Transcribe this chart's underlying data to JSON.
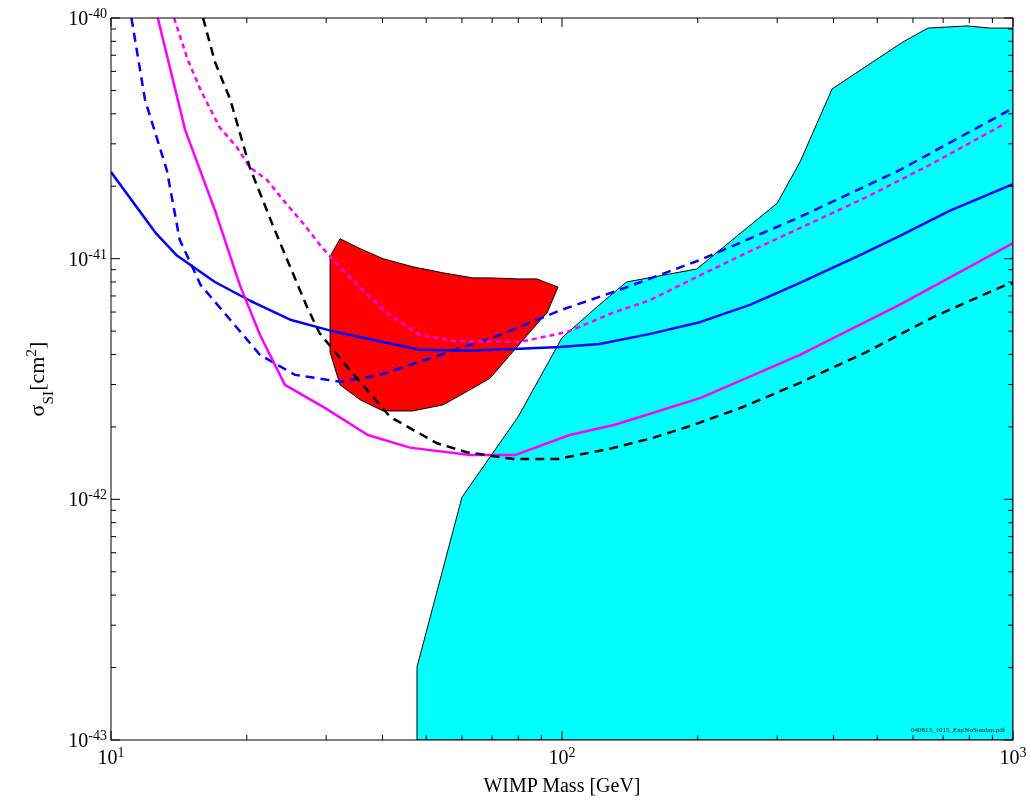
{
  "chart_data": {
    "type": "line",
    "xlabel": "WIMP Mass [GeV]",
    "ylabel": "σ$_{SI}$[cm$^{2}$]",
    "log": "xy",
    "xlim": [
      10,
      1000
    ],
    "ylim": [
      1e-43,
      1e-40
    ],
    "xticks": [
      {
        "value": 10,
        "label": "10$^{1}$"
      },
      {
        "value": 20,
        "label": null
      },
      {
        "value": 30,
        "label": null
      },
      {
        "value": 40,
        "label": null
      },
      {
        "value": 50,
        "label": null
      },
      {
        "value": 60,
        "label": null
      },
      {
        "value": 70,
        "label": null
      },
      {
        "value": 80,
        "label": null
      },
      {
        "value": 90,
        "label": null
      },
      {
        "value": 100,
        "label": "10$^{2}$"
      },
      {
        "value": 200,
        "label": null
      },
      {
        "value": 300,
        "label": null
      },
      {
        "value": 400,
        "label": null
      },
      {
        "value": 500,
        "label": null
      },
      {
        "value": 600,
        "label": null
      },
      {
        "value": 700,
        "label": null
      },
      {
        "value": 800,
        "label": null
      },
      {
        "value": 900,
        "label": null
      },
      {
        "value": 1000,
        "label": "10$^{3}$"
      }
    ],
    "yticks": [
      {
        "value": 1e-43,
        "label": "10$^{-43}$"
      },
      {
        "value": 2e-43,
        "label": null
      },
      {
        "value": 3e-43,
        "label": null
      },
      {
        "value": 4e-43,
        "label": null
      },
      {
        "value": 5e-43,
        "label": null
      },
      {
        "value": 6e-43,
        "label": null
      },
      {
        "value": 7e-43,
        "label": null
      },
      {
        "value": 8e-43,
        "label": null
      },
      {
        "value": 9e-43,
        "label": null
      },
      {
        "value": 1e-42,
        "label": "10$^{-42}$"
      },
      {
        "value": 2e-42,
        "label": null
      },
      {
        "value": 3e-42,
        "label": null
      },
      {
        "value": 4e-42,
        "label": null
      },
      {
        "value": 5e-42,
        "label": null
      },
      {
        "value": 6e-42,
        "label": null
      },
      {
        "value": 7e-42,
        "label": null
      },
      {
        "value": 8e-42,
        "label": null
      },
      {
        "value": 9e-42,
        "label": null
      },
      {
        "value": 1e-41,
        "label": "10$^{-41}$"
      },
      {
        "value": 2e-41,
        "label": null
      },
      {
        "value": 3e-41,
        "label": null
      },
      {
        "value": 4e-41,
        "label": null
      },
      {
        "value": 5e-41,
        "label": null
      },
      {
        "value": 6e-41,
        "label": null
      },
      {
        "value": 7e-41,
        "label": null
      },
      {
        "value": 8e-41,
        "label": null
      },
      {
        "value": 9e-41,
        "label": null
      },
      {
        "value": 1e-40,
        "label": "10$^{-40}$"
      }
    ],
    "annotations": [
      "040813_1015_ExpNoSoudan.pdf"
    ],
    "series": [
      {
        "type": "area",
        "color": "#00ffff",
        "x": [
          47.7,
          47.7,
          60,
          79.9,
          100,
          121,
          139,
          199,
          300,
          337,
          397,
          570,
          648,
          791,
          889,
          1000
        ],
        "values": [
          1e-43,
          2.01e-43,
          1.02e-42,
          2.2e-42,
          4.69e-42,
          6.43e-42,
          8e-42,
          9.06e-42,
          1.7e-41,
          2.52e-41,
          5.07e-41,
          7.95e-41,
          9.08e-41,
          9.27e-41,
          9.08e-41,
          9.08e-41
        ]
      },
      {
        "type": "area",
        "color": "#ff0000",
        "x": [
          30.6,
          32.2,
          35.7,
          40.1,
          46.7,
          54.5,
          63.5,
          69.3,
          79.5,
          88,
          92.6,
          98,
          92.6,
          88,
          79.5,
          69.3,
          63.5,
          54.5,
          46.7,
          40.1,
          35.7,
          32.2,
          30.6
        ],
        "values": [
          1.02e-41,
          1.21e-41,
          1.1e-41,
          1e-41,
          9.25e-42,
          8.73e-42,
          8.32e-42,
          8.32e-42,
          8.24e-42,
          8.24e-42,
          7.93e-42,
          7.62e-42,
          5.94e-42,
          5.36e-42,
          4.3e-42,
          3.19e-42,
          2.9e-42,
          2.47e-42,
          2.33e-42,
          2.33e-42,
          2.59e-42,
          2.99e-42,
          4.09e-42
        ]
      },
      {
        "color": "#0000ff",
        "line_style": "solid",
        "x": [
          10,
          12.6,
          14,
          17,
          20.4,
          25.1,
          30.8,
          48.4,
          62.6,
          99,
          121,
          157,
          203,
          261,
          337,
          436,
          560,
          723,
          1000
        ],
        "values": [
          2.29e-41,
          1.27e-41,
          1.03e-41,
          8e-42,
          6.67e-42,
          5.56e-42,
          5.01e-42,
          4.18e-42,
          4.14e-42,
          4.3e-42,
          4.42e-42,
          4.87e-42,
          5.46e-42,
          6.43e-42,
          7.93e-42,
          9.9e-42,
          1.24e-41,
          1.58e-41,
          2.04e-41
        ]
      },
      {
        "color": "#0000ff",
        "line_style": "dashed",
        "x": [
          11.1,
          11.9,
          13.3,
          14.2,
          15.8,
          18.4,
          21.4,
          25.6,
          32.2,
          39.5,
          53.7,
          72.9,
          99.6,
          134,
          203,
          337,
          560,
          1000
        ],
        "values": [
          1e-40,
          4.56e-41,
          2.33e-41,
          1.2e-41,
          7.78e-42,
          5.56e-42,
          3.98e-42,
          3.29e-42,
          3.08e-42,
          3.29e-42,
          3.98e-42,
          4.82e-42,
          6.12e-42,
          7.41e-42,
          9.9e-42,
          1.49e-41,
          2.33e-41,
          4.22e-41
        ]
      },
      {
        "color": "#ff00ff",
        "line_style": "solid",
        "x": [
          12.7,
          14.6,
          17,
          19.3,
          21.4,
          24.3,
          29.8,
          37.1,
          46,
          62.6,
          78.9,
          104,
          131,
          203,
          337,
          560,
          1000
        ],
        "values": [
          1e-40,
          3.43e-41,
          1.59e-41,
          7.78e-42,
          4.82e-42,
          2.99e-42,
          2.4e-42,
          1.85e-42,
          1.64e-42,
          1.53e-42,
          1.53e-42,
          1.85e-42,
          2.04e-42,
          2.64e-42,
          3.98e-42,
          6.43e-42,
          1.16e-41
        ]
      },
      {
        "color": "#ff00ff",
        "line_style": "dotted",
        "x": [
          13.8,
          14.8,
          15.8,
          17.4,
          19,
          20.3,
          22.2,
          24.1,
          26.6,
          29.4,
          32.2,
          35.6,
          39.5,
          43.1,
          48.4,
          57.4,
          80.7,
          102.7,
          129,
          157,
          199,
          252,
          337,
          473,
          667,
          964
        ],
        "values": [
          1e-40,
          6.7e-41,
          5.02e-41,
          3.52e-41,
          2.91e-41,
          2.4e-41,
          2.12e-41,
          1.75e-41,
          1.41e-41,
          1.11e-41,
          9.2e-42,
          7.62e-42,
          6.3e-42,
          5.56e-42,
          4.82e-42,
          4.55e-42,
          4.51e-42,
          4.96e-42,
          5.94e-42,
          6.73e-42,
          8.4e-42,
          1.04e-41,
          1.34e-41,
          1.8e-41,
          2.5e-41,
          3.66e-41
        ]
      },
      {
        "color": "#000000",
        "line_style": "dashed",
        "x": [
          16,
          17,
          18.4,
          20.3,
          22.9,
          27.2,
          29,
          33.4,
          41.6,
          52.8,
          61.5,
          77.9,
          97.6,
          129,
          159,
          196,
          252,
          337,
          473,
          667,
          964,
          1000
        ],
        "values": [
          1e-40,
          6.57e-41,
          4.56e-41,
          2.4e-41,
          1.36e-41,
          6.3e-42,
          4.91e-42,
          3.55e-42,
          2.2e-42,
          1.71e-42,
          1.57e-42,
          1.47e-42,
          1.47e-42,
          1.63e-42,
          1.8e-42,
          2.04e-42,
          2.42e-42,
          3.05e-42,
          4.09e-42,
          5.73e-42,
          7.78e-42,
          7.9e-42
        ]
      }
    ]
  }
}
